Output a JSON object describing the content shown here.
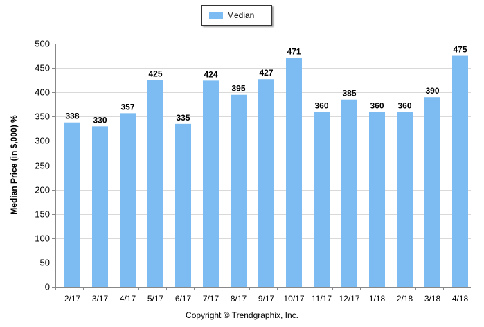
{
  "legend": {
    "label": "Median",
    "color": "#7cbcf2"
  },
  "copyright": "Copyright © Trendgraphix, Inc.",
  "chart_data": {
    "type": "bar",
    "categories": [
      "2/17",
      "3/17",
      "4/17",
      "5/17",
      "6/17",
      "7/17",
      "8/17",
      "9/17",
      "10/17",
      "11/17",
      "12/17",
      "1/18",
      "2/18",
      "3/18",
      "4/18"
    ],
    "series": [
      {
        "name": "Median",
        "values": [
          338,
          330,
          357,
          425,
          335,
          424,
          395,
          427,
          471,
          360,
          385,
          360,
          360,
          390,
          475
        ]
      }
    ],
    "ylabel": "Median Price (in $,000) %",
    "xlabel": "",
    "ylim": [
      0,
      500
    ],
    "yticks": [
      0,
      50,
      100,
      150,
      200,
      250,
      300,
      350,
      400,
      450,
      500
    ],
    "grid": true,
    "legend_position": "top-center",
    "data_labels": true
  }
}
